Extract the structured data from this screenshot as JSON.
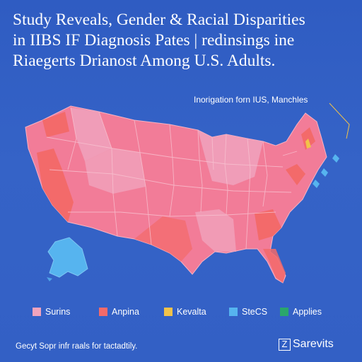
{
  "title": {
    "line1": "Study Reveals, Gender & Racial Disparities",
    "line2": "in IIBS IF Diagnosis Pates | redinsings ine",
    "line3": "Riaegerts Drianost Among U.S. Adults."
  },
  "callout": {
    "text": "Inorigation forn IUS, Manchles"
  },
  "colors": {
    "background": "#3461c4",
    "pink": "#f27c98",
    "pink_light": "#f0a3bd",
    "coral": "#f36a6a",
    "yellow": "#f1c24a",
    "light_blue": "#56b4ef",
    "green": "#2aa66b"
  },
  "legend": [
    {
      "label": "Surins",
      "color": "#f0a3bd"
    },
    {
      "label": "Anpina",
      "color": "#f36a6a"
    },
    {
      "label": "Kevalta",
      "color": "#f1c24a"
    },
    {
      "label": "SteCS",
      "color": "#56b4ef"
    },
    {
      "label": "Applies",
      "color": "#2aa66b"
    }
  ],
  "footer": {
    "note": "Gecyt Sopr infr raals for tactadtily."
  },
  "brand": {
    "mark": "Z",
    "name": "Sarevits"
  }
}
